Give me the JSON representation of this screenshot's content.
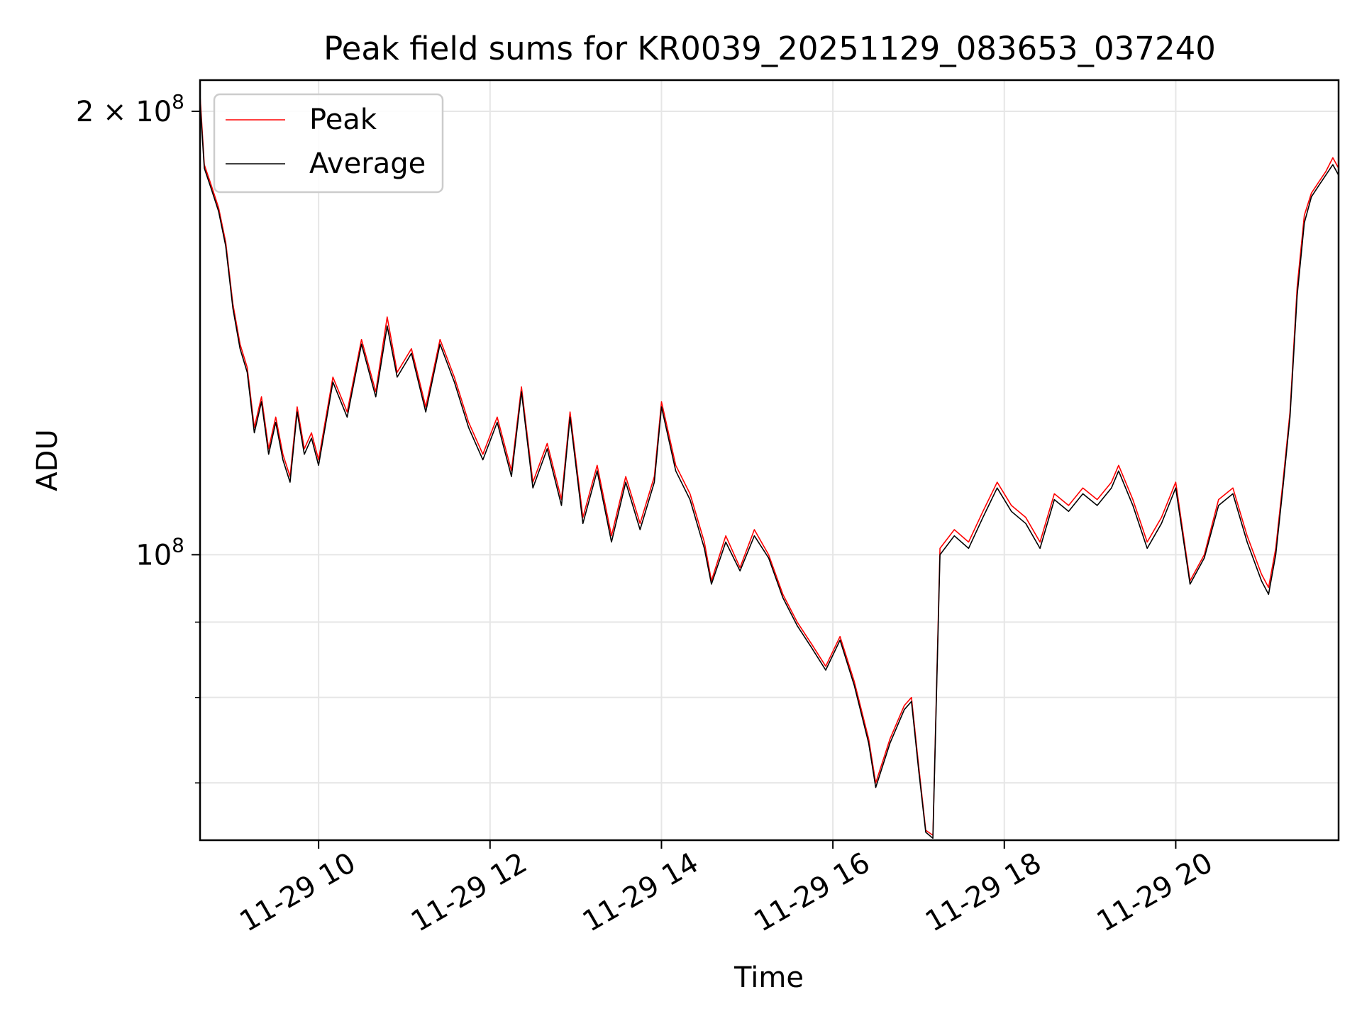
{
  "chart_data": {
    "type": "line",
    "title": "Peak field sums for KR0039_20251129_083653_037240",
    "xlabel": "Time",
    "ylabel": "ADU",
    "y_scale": "log",
    "ylim": [
      64000000,
      210000000
    ],
    "xlim": [
      "2025-11-29 08:37",
      "2025-11-29 21:54"
    ],
    "grid": true,
    "legend_position": "top-left",
    "x_tick_labels": [
      "11-29 10",
      "11-29 12",
      "11-29 14",
      "11-29 16",
      "11-29 18",
      "11-29 20"
    ],
    "x_ticks": [
      "2025-11-29 10:00",
      "2025-11-29 12:00",
      "2025-11-29 14:00",
      "2025-11-29 16:00",
      "2025-11-29 18:00",
      "2025-11-29 20:00"
    ],
    "y_major_ticks": [
      {
        "value": 100000000,
        "label_base": "10",
        "label_exp": "8"
      },
      {
        "value": 200000000,
        "label_base": "2 × 10",
        "label_exp": "8"
      }
    ],
    "y_minor_ticks": [
      70000000,
      80000000,
      90000000,
      300000000
    ],
    "series": [
      {
        "name": "Peak",
        "color": "#ff0000",
        "x": [
          "2025-11-29 08:37",
          "2025-11-29 08:40",
          "2025-11-29 08:45",
          "2025-11-29 08:50",
          "2025-11-29 08:55",
          "2025-11-29 09:00",
          "2025-11-29 09:05",
          "2025-11-29 09:10",
          "2025-11-29 09:15",
          "2025-11-29 09:20",
          "2025-11-29 09:25",
          "2025-11-29 09:30",
          "2025-11-29 09:35",
          "2025-11-29 09:40",
          "2025-11-29 09:45",
          "2025-11-29 09:50",
          "2025-11-29 09:55",
          "2025-11-29 10:00",
          "2025-11-29 10:10",
          "2025-11-29 10:20",
          "2025-11-29 10:30",
          "2025-11-29 10:40",
          "2025-11-29 10:48",
          "2025-11-29 10:55",
          "2025-11-29 11:05",
          "2025-11-29 11:15",
          "2025-11-29 11:25",
          "2025-11-29 11:35",
          "2025-11-29 11:45",
          "2025-11-29 11:55",
          "2025-11-29 12:05",
          "2025-11-29 12:15",
          "2025-11-29 12:22",
          "2025-11-29 12:30",
          "2025-11-29 12:40",
          "2025-11-29 12:50",
          "2025-11-29 12:56",
          "2025-11-29 13:05",
          "2025-11-29 13:15",
          "2025-11-29 13:25",
          "2025-11-29 13:35",
          "2025-11-29 13:45",
          "2025-11-29 13:55",
          "2025-11-29 14:00",
          "2025-11-29 14:10",
          "2025-11-29 14:20",
          "2025-11-29 14:30",
          "2025-11-29 14:35",
          "2025-11-29 14:45",
          "2025-11-29 14:55",
          "2025-11-29 15:05",
          "2025-11-29 15:15",
          "2025-11-29 15:25",
          "2025-11-29 15:35",
          "2025-11-29 15:45",
          "2025-11-29 15:55",
          "2025-11-29 16:05",
          "2025-11-29 16:15",
          "2025-11-29 16:25",
          "2025-11-29 16:30",
          "2025-11-29 16:40",
          "2025-11-29 16:50",
          "2025-11-29 16:55",
          "2025-11-29 17:00",
          "2025-11-29 17:05",
          "2025-11-29 17:10",
          "2025-11-29 17:15",
          "2025-11-29 17:25",
          "2025-11-29 17:35",
          "2025-11-29 17:45",
          "2025-11-29 17:55",
          "2025-11-29 18:05",
          "2025-11-29 18:15",
          "2025-11-29 18:25",
          "2025-11-29 18:35",
          "2025-11-29 18:45",
          "2025-11-29 18:55",
          "2025-11-29 19:05",
          "2025-11-29 19:15",
          "2025-11-29 19:20",
          "2025-11-29 19:30",
          "2025-11-29 19:40",
          "2025-11-29 19:50",
          "2025-11-29 20:00",
          "2025-11-29 20:10",
          "2025-11-29 20:20",
          "2025-11-29 20:30",
          "2025-11-29 20:40",
          "2025-11-29 20:50",
          "2025-11-29 21:00",
          "2025-11-29 21:05",
          "2025-11-29 21:10",
          "2025-11-29 21:15",
          "2025-11-29 21:20",
          "2025-11-29 21:25",
          "2025-11-29 21:30",
          "2025-11-29 21:35",
          "2025-11-29 21:40",
          "2025-11-29 21:45",
          "2025-11-29 21:50",
          "2025-11-29 21:54"
        ],
        "y": [
          205000000,
          184000000,
          178000000,
          172000000,
          163000000,
          148000000,
          139000000,
          134000000,
          122000000,
          128000000,
          118000000,
          124000000,
          117000000,
          113000000,
          126000000,
          118000000,
          121000000,
          116000000,
          132000000,
          125000000,
          140000000,
          129000000,
          145000000,
          133000000,
          138000000,
          126000000,
          140000000,
          132000000,
          123000000,
          117000000,
          124000000,
          114000000,
          130000000,
          112000000,
          119000000,
          109000000,
          125000000,
          106000000,
          115000000,
          103000000,
          113000000,
          105000000,
          113000000,
          127000000,
          115000000,
          110000000,
          102000000,
          96000000,
          103000000,
          98000000,
          104000000,
          100000000,
          94000000,
          90000000,
          87000000,
          84000000,
          88000000,
          82000000,
          75000000,
          70000000,
          75000000,
          79000000,
          80000000,
          72000000,
          65000000,
          64500000,
          101000000,
          104000000,
          102000000,
          107000000,
          112000000,
          108000000,
          106000000,
          102000000,
          110000000,
          108000000,
          111000000,
          109000000,
          112000000,
          115000000,
          109000000,
          102000000,
          106000000,
          112000000,
          96000000,
          100000000,
          109000000,
          111000000,
          103000000,
          97000000,
          95000000,
          101000000,
          112000000,
          125000000,
          152000000,
          170000000,
          176000000,
          179000000,
          182000000,
          186000000,
          183000000
        ]
      },
      {
        "name": "Average",
        "color": "#000000",
        "x": [
          "2025-11-29 08:37",
          "2025-11-29 08:40",
          "2025-11-29 08:45",
          "2025-11-29 08:50",
          "2025-11-29 08:55",
          "2025-11-29 09:00",
          "2025-11-29 09:05",
          "2025-11-29 09:10",
          "2025-11-29 09:15",
          "2025-11-29 09:20",
          "2025-11-29 09:25",
          "2025-11-29 09:30",
          "2025-11-29 09:35",
          "2025-11-29 09:40",
          "2025-11-29 09:45",
          "2025-11-29 09:50",
          "2025-11-29 09:55",
          "2025-11-29 10:00",
          "2025-11-29 10:10",
          "2025-11-29 10:20",
          "2025-11-29 10:30",
          "2025-11-29 10:40",
          "2025-11-29 10:48",
          "2025-11-29 10:55",
          "2025-11-29 11:05",
          "2025-11-29 11:15",
          "2025-11-29 11:25",
          "2025-11-29 11:35",
          "2025-11-29 11:45",
          "2025-11-29 11:55",
          "2025-11-29 12:05",
          "2025-11-29 12:15",
          "2025-11-29 12:22",
          "2025-11-29 12:30",
          "2025-11-29 12:40",
          "2025-11-29 12:50",
          "2025-11-29 12:56",
          "2025-11-29 13:05",
          "2025-11-29 13:15",
          "2025-11-29 13:25",
          "2025-11-29 13:35",
          "2025-11-29 13:45",
          "2025-11-29 13:55",
          "2025-11-29 14:00",
          "2025-11-29 14:10",
          "2025-11-29 14:20",
          "2025-11-29 14:30",
          "2025-11-29 14:35",
          "2025-11-29 14:45",
          "2025-11-29 14:55",
          "2025-11-29 15:05",
          "2025-11-29 15:15",
          "2025-11-29 15:25",
          "2025-11-29 15:35",
          "2025-11-29 15:45",
          "2025-11-29 15:55",
          "2025-11-29 16:05",
          "2025-11-29 16:15",
          "2025-11-29 16:25",
          "2025-11-29 16:30",
          "2025-11-29 16:40",
          "2025-11-29 16:50",
          "2025-11-29 16:55",
          "2025-11-29 17:00",
          "2025-11-29 17:05",
          "2025-11-29 17:10",
          "2025-11-29 17:15",
          "2025-11-29 17:25",
          "2025-11-29 17:35",
          "2025-11-29 17:45",
          "2025-11-29 17:55",
          "2025-11-29 18:05",
          "2025-11-29 18:15",
          "2025-11-29 18:25",
          "2025-11-29 18:35",
          "2025-11-29 18:45",
          "2025-11-29 18:55",
          "2025-11-29 19:05",
          "2025-11-29 19:15",
          "2025-11-29 19:20",
          "2025-11-29 19:30",
          "2025-11-29 19:40",
          "2025-11-29 19:50",
          "2025-11-29 20:00",
          "2025-11-29 20:10",
          "2025-11-29 20:20",
          "2025-11-29 20:30",
          "2025-11-29 20:40",
          "2025-11-29 20:50",
          "2025-11-29 21:00",
          "2025-11-29 21:05",
          "2025-11-29 21:10",
          "2025-11-29 21:15",
          "2025-11-29 21:20",
          "2025-11-29 21:25",
          "2025-11-29 21:30",
          "2025-11-29 21:35",
          "2025-11-29 21:40",
          "2025-11-29 21:45",
          "2025-11-29 21:50",
          "2025-11-29 21:54"
        ],
        "y": [
          203000000,
          183000000,
          177000000,
          171000000,
          162000000,
          147000000,
          138000000,
          133000000,
          121000000,
          127000000,
          117000000,
          123000000,
          116000000,
          112000000,
          125000000,
          117000000,
          120000000,
          115000000,
          131000000,
          124000000,
          139000000,
          128000000,
          143000000,
          132000000,
          137000000,
          125000000,
          139000000,
          131000000,
          122000000,
          116000000,
          123000000,
          113000000,
          129000000,
          111000000,
          118000000,
          108000000,
          124000000,
          105000000,
          114000000,
          102000000,
          112000000,
          104000000,
          112000000,
          126000000,
          114000000,
          109000000,
          101000000,
          95500000,
          102000000,
          97500000,
          103000000,
          99500000,
          93500000,
          89500000,
          86500000,
          83500000,
          87500000,
          81500000,
          74500000,
          69500000,
          74500000,
          78500000,
          79500000,
          71500000,
          64800000,
          64200000,
          100000000,
          103000000,
          101000000,
          106000000,
          111000000,
          107000000,
          105000000,
          101000000,
          109000000,
          107000000,
          110000000,
          108000000,
          111000000,
          114000000,
          108000000,
          101000000,
          105000000,
          111000000,
          95500000,
          99500000,
          108000000,
          110000000,
          102000000,
          96000000,
          94000000,
          100000000,
          111000000,
          124000000,
          150000000,
          168000000,
          175000000,
          178000000,
          181000000,
          184000000,
          181000000
        ]
      }
    ]
  }
}
